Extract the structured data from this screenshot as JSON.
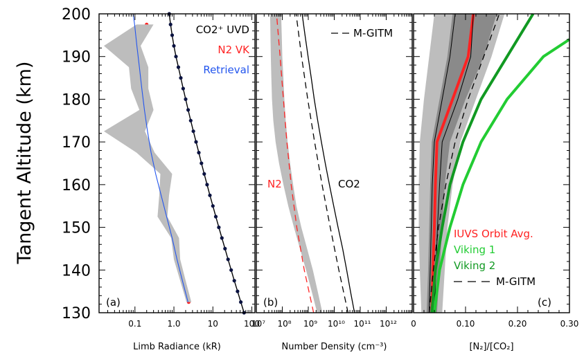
{
  "ylabel": "Tangent Altitude (km)",
  "colors": {
    "co2": "#000000",
    "n2": "#ff2222",
    "retrieval": "#2255ee",
    "band": "#bdbdbd",
    "band_dark": "#8a8a8a",
    "viking1": "#22cc33",
    "viking2": "#119922",
    "dot_co2": "#0a1240"
  },
  "chart_data": [
    {
      "type": "line",
      "panel_label": "(a)",
      "xlabel": "Limb Radiance (kR)",
      "xscale": "log",
      "xlim": [
        0.012,
        120
      ],
      "ylim": [
        130,
        200
      ],
      "xticks": [
        {
          "v": 0.1,
          "label": "0.1"
        },
        {
          "v": 1,
          "label": "1.0"
        },
        {
          "v": 10,
          "label": "10"
        },
        {
          "v": 100,
          "label": "100"
        }
      ],
      "yticks": [
        130,
        140,
        150,
        160,
        170,
        180,
        190,
        200
      ],
      "legend": [
        "CO2⁺ UVD",
        "N2 VK",
        "Retrieval"
      ],
      "series": [
        {
          "name": "CO2⁺ UVD",
          "style": "line-dots",
          "y": [
            130,
            132.5,
            135,
            137.5,
            140,
            142.5,
            145,
            147.5,
            150,
            152.5,
            155,
            157.5,
            160,
            162.5,
            165,
            167.5,
            170,
            172.5,
            175,
            177.5,
            180,
            182.5,
            185,
            187.5,
            190,
            192.5,
            195,
            197.5,
            200
          ],
          "x": [
            63,
            52,
            43,
            35.5,
            29.5,
            24.5,
            20.5,
            17,
            14.2,
            11.9,
            10,
            8.4,
            7.1,
            6,
            5.1,
            4.35,
            3.7,
            3.15,
            2.7,
            2.32,
            2.0,
            1.73,
            1.5,
            1.3,
            1.13,
            1.0,
            0.9,
            0.82,
            0.76
          ]
        },
        {
          "name": "N2 VK",
          "style": "line-dots",
          "y": [
            132.5,
            137.5,
            142.5,
            147.5,
            152.5,
            157.5,
            162.5,
            167.5,
            172.5,
            177.5,
            182.5,
            187.5,
            192.5,
            197.5
          ],
          "x": [
            2.4,
            1.7,
            1.2,
            1.05,
            0.5,
            0.55,
            0.65,
            0.2,
            0.085,
            0.2,
            0.14,
            0.13,
            0.05,
            0.2
          ]
        },
        {
          "name": "N2 VK band",
          "style": "band",
          "y": [
            132.5,
            137.5,
            142.5,
            147.5,
            152.5,
            157.5,
            162.5,
            167.5,
            172.5,
            177.5,
            182.5,
            187.5,
            192.5,
            197.5
          ],
          "xlow": [
            2.1,
            1.45,
            1.0,
            0.85,
            0.38,
            0.42,
            0.45,
            0.11,
            0.016,
            0.13,
            0.08,
            0.07,
            0.016,
            0.11
          ],
          "xhigh": [
            2.8,
            2.0,
            1.45,
            1.35,
            0.68,
            0.75,
            0.9,
            0.32,
            0.18,
            0.3,
            0.22,
            0.22,
            0.14,
            0.3
          ]
        },
        {
          "name": "Retrieval",
          "style": "line",
          "y": [
            132.5,
            137.5,
            142.5,
            147.5,
            152.5,
            157.5,
            162.5,
            167.5,
            172.5,
            177.5,
            182.5,
            187.5,
            192.5,
            197.5,
            200
          ],
          "x": [
            2.3,
            1.65,
            1.2,
            0.9,
            0.65,
            0.47,
            0.34,
            0.26,
            0.21,
            0.175,
            0.15,
            0.13,
            0.112,
            0.098,
            0.09
          ]
        }
      ]
    },
    {
      "type": "line",
      "panel_label": "(b)",
      "xlabel": "Number Density (cm⁻³)",
      "xscale": "log",
      "xlim": [
        10000000,
        10000000000000
      ],
      "ylim": [
        130,
        200
      ],
      "xticks": [
        {
          "v": 10000000,
          "label": "10⁷"
        },
        {
          "v": 100000000,
          "label": "10⁸"
        },
        {
          "v": 1000000000,
          "label": "10⁹"
        },
        {
          "v": 10000000000,
          "label": "10¹⁰"
        },
        {
          "v": 100000000000,
          "label": "10¹¹"
        },
        {
          "v": 1000000000000,
          "label": "10¹²"
        }
      ],
      "annotations": [
        "N2",
        "CO2"
      ],
      "legend": [
        "M-GITM"
      ],
      "series": [
        {
          "name": "N2",
          "style": "line",
          "y": [
            130,
            135,
            140,
            145,
            150,
            155,
            160,
            165,
            170,
            175,
            180,
            185,
            190,
            195,
            200
          ],
          "x": [
            2800000000.0,
            1800000000.0,
            1100000000.0,
            650000000.0,
            390000000.0,
            250000000.0,
            175000000.0,
            130000000.0,
            100000000.0,
            80000000.0,
            70000000.0,
            65000000.0,
            60000000.0,
            57000000.0,
            54000000.0
          ]
        },
        {
          "name": "N2 band",
          "style": "band",
          "y": [
            130,
            135,
            140,
            145,
            150,
            155,
            160,
            165,
            170,
            175,
            180,
            185,
            190,
            195,
            200
          ],
          "xlow": [
            2200000000.0,
            1350000000.0,
            820000000.0,
            480000000.0,
            280000000.0,
            170000000.0,
            110000000.0,
            75000000.0,
            55000000.0,
            45000000.0,
            40000000.0,
            38000000.0,
            36000000.0,
            35000000.0,
            34000000.0
          ],
          "xhigh": [
            3500000000.0,
            2300000000.0,
            1500000000.0,
            900000000.0,
            540000000.0,
            350000000.0,
            260000000.0,
            200000000.0,
            160000000.0,
            135000000.0,
            120000000.0,
            110000000.0,
            100000000.0,
            95000000.0,
            90000000.0
          ]
        },
        {
          "name": "N2 M-GITM",
          "style": "dashed",
          "y": [
            130,
            140,
            150,
            160,
            170,
            180,
            190,
            200
          ],
          "x": [
            1600000000.0,
            700000000.0,
            360000000.0,
            220000000.0,
            150000000.0,
            110000000.0,
            82000000.0,
            60000000.0
          ]
        },
        {
          "name": "CO2",
          "style": "line",
          "y": [
            130,
            135,
            140,
            145,
            150,
            155,
            160,
            165,
            170,
            175,
            180,
            185,
            190,
            195,
            200
          ],
          "x": [
            60000000000.0,
            42000000000.0,
            30000000000.0,
            21000000000.0,
            14000000000.0,
            9500000000.0,
            6500000000.0,
            4500000000.0,
            3200000000.0,
            2300000000.0,
            1700000000.0,
            1300000000.0,
            980000000.0,
            750000000.0,
            580000000.0
          ]
        },
        {
          "name": "CO2 M-GITM",
          "style": "dashed",
          "y": [
            130,
            140,
            150,
            160,
            170,
            180,
            190,
            200
          ],
          "x": [
            34000000000.0,
            15000000000.0,
            7000000000.0,
            3400000000.0,
            1750000000.0,
            950000000.0,
            550000000.0,
            340000000.0
          ]
        }
      ]
    },
    {
      "type": "line",
      "panel_label": "(c)",
      "xlabel": "[N₂]/[CO₂]",
      "xscale": "linear",
      "xlim": [
        0,
        0.3
      ],
      "ylim": [
        130,
        200
      ],
      "xticks": [
        {
          "v": 0,
          "label": "0"
        },
        {
          "v": 0.1,
          "label": "0.10"
        },
        {
          "v": 0.2,
          "label": "0.20"
        },
        {
          "v": 0.3,
          "label": "0.30"
        }
      ],
      "legend": [
        "IUVS Orbit Avg.",
        "Viking 1",
        "Viking 2",
        "M-GITM"
      ],
      "series": [
        {
          "name": "outer band",
          "style": "band",
          "y": [
            130,
            140,
            150,
            160,
            170,
            180,
            190,
            200
          ],
          "xlow": [
            0.015,
            0.012,
            0.01,
            0.01,
            0.012,
            0.02,
            0.03,
            0.04
          ],
          "xhigh": [
            0.055,
            0.06,
            0.065,
            0.075,
            0.09,
            0.12,
            0.15,
            0.175
          ]
        },
        {
          "name": "inner band",
          "style": "band_dark",
          "y": [
            130,
            140,
            150,
            160,
            170,
            180,
            190,
            200
          ],
          "xlow": [
            0.025,
            0.028,
            0.03,
            0.032,
            0.035,
            0.05,
            0.065,
            0.075
          ],
          "xhigh": [
            0.045,
            0.05,
            0.055,
            0.06,
            0.07,
            0.1,
            0.135,
            0.16
          ]
        },
        {
          "name": "IUVS Orbit Avg.",
          "style": "thick",
          "y": [
            130,
            140,
            150,
            160,
            170,
            180,
            190,
            200
          ],
          "x": [
            0.035,
            0.037,
            0.04,
            0.042,
            0.045,
            0.075,
            0.105,
            0.115
          ]
        },
        {
          "name": "IUVS inner line 1",
          "style": "thin",
          "y": [
            130,
            140,
            150,
            160,
            170,
            180,
            190,
            200
          ],
          "x": [
            0.03,
            0.032,
            0.034,
            0.036,
            0.04,
            0.055,
            0.07,
            0.08
          ]
        },
        {
          "name": "IUVS inner line 2",
          "style": "thin",
          "y": [
            130,
            140,
            150,
            160,
            170,
            180,
            190,
            200
          ],
          "x": [
            0.04,
            0.043,
            0.046,
            0.05,
            0.055,
            0.085,
            0.11,
            0.115
          ]
        },
        {
          "name": "Viking 1",
          "style": "thick",
          "y": [
            130,
            140,
            150,
            160,
            170,
            180,
            190,
            194
          ],
          "x": [
            0.04,
            0.05,
            0.07,
            0.095,
            0.13,
            0.18,
            0.25,
            0.3
          ]
        },
        {
          "name": "Viking 2",
          "style": "thick",
          "y": [
            130,
            140,
            150,
            160,
            170,
            180,
            190,
            200
          ],
          "x": [
            0.035,
            0.042,
            0.055,
            0.07,
            0.095,
            0.13,
            0.18,
            0.23
          ]
        },
        {
          "name": "M-GITM",
          "style": "dashed",
          "y": [
            130,
            140,
            150,
            160,
            170,
            180,
            190,
            200
          ],
          "x": [
            0.03,
            0.038,
            0.048,
            0.062,
            0.08,
            0.105,
            0.135,
            0.165
          ]
        }
      ]
    }
  ]
}
